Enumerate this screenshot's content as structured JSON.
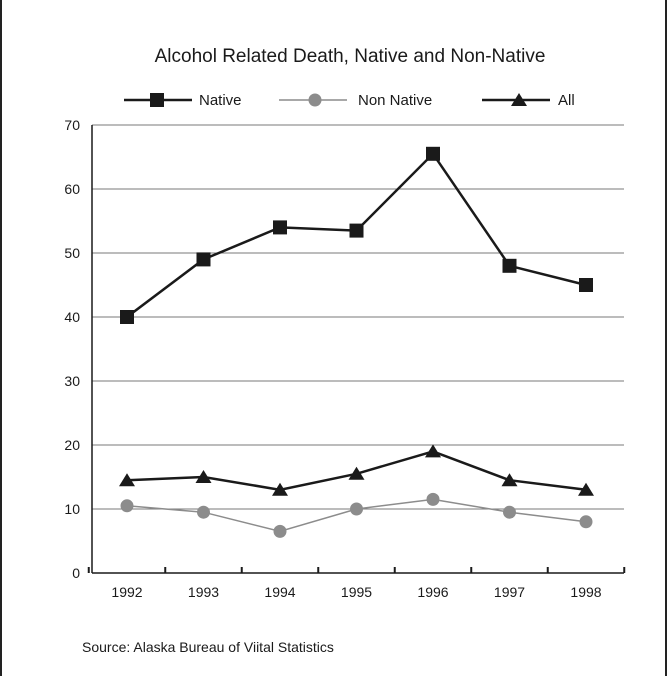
{
  "chart_data": {
    "type": "line",
    "title": "Alcohol Related Death, Native and Non-Native",
    "xlabel": "",
    "ylabel": "",
    "x": [
      "1992",
      "1993",
      "1994",
      "1995",
      "1996",
      "1997",
      "1998"
    ],
    "ylim": [
      0,
      70
    ],
    "yticks": [
      "0",
      "10",
      "20",
      "30",
      "40",
      "50",
      "60",
      "70"
    ],
    "grid": true,
    "legend_position": "top",
    "series": [
      {
        "name": "Native",
        "marker": "square",
        "color": "#1a1a1a",
        "values": [
          40,
          49,
          54,
          53.5,
          65.5,
          48,
          45
        ]
      },
      {
        "name": "Non Native",
        "marker": "circle",
        "color": "#8c8c8c",
        "values": [
          10.5,
          9.5,
          6.5,
          10,
          11.5,
          9.5,
          8
        ]
      },
      {
        "name": "All",
        "marker": "triangle",
        "color": "#1a1a1a",
        "values": [
          14.5,
          15,
          13,
          15.5,
          19,
          14.5,
          13
        ]
      }
    ],
    "source": "Source: Alaska Bureau of Viital Statistics"
  }
}
